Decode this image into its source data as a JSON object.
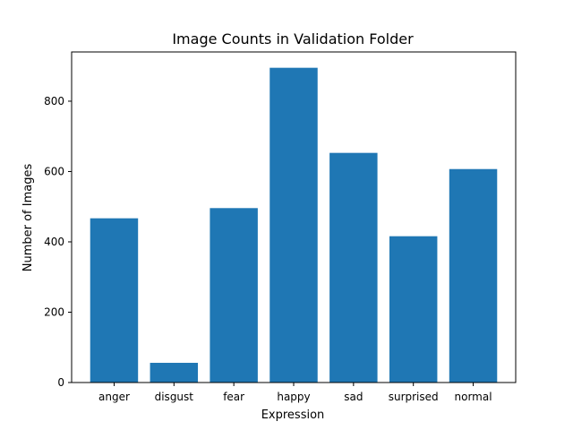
{
  "chart_data": {
    "type": "bar",
    "title": "Image Counts in Validation Folder",
    "xlabel": "Expression",
    "ylabel": "Number of Images",
    "categories": [
      "anger",
      "disgust",
      "fear",
      "happy",
      "sad",
      "surprised",
      "normal"
    ],
    "values": [
      467,
      56,
      496,
      895,
      653,
      416,
      607
    ],
    "ylim": [
      0,
      940
    ],
    "yticks": [
      0,
      200,
      400,
      600,
      800
    ],
    "bar_color": "#1f77b4",
    "grid": false,
    "legend": "none"
  }
}
